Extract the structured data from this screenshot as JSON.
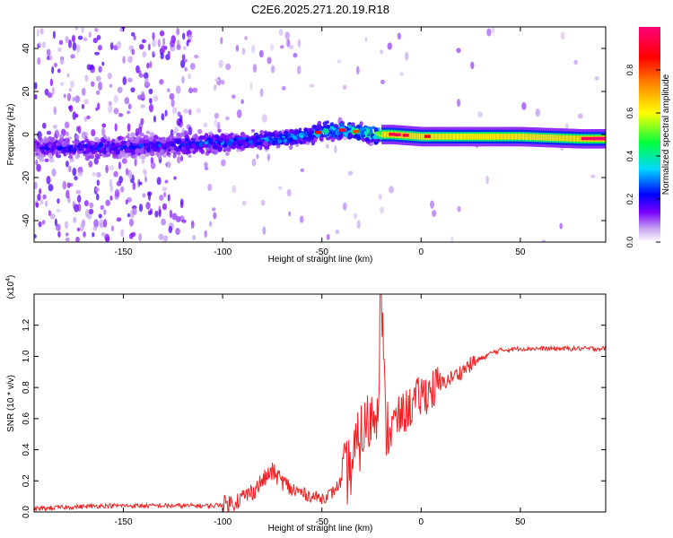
{
  "figure": {
    "title": "C2E6.2025.271.20.19.R18"
  },
  "chart_data": [
    {
      "type": "heatmap",
      "title": "C2E6.2025.271.20.19.R18",
      "xlabel": "Height of straight line (km)",
      "ylabel": "Frequency (Hz)",
      "xlim": [
        -195,
        93
      ],
      "ylim": [
        -50,
        50
      ],
      "xticks": [
        -150,
        -100,
        -50,
        0,
        50
      ],
      "yticks": [
        -40,
        -20,
        0,
        20,
        40
      ],
      "colorbar": {
        "label": "Normalized spectral amplitude",
        "range": [
          0,
          1
        ],
        "ticks": [
          "0.0",
          "0.2",
          "0.4",
          "0.6",
          "0.8"
        ],
        "colors": [
          "#ffffff",
          "#c8a8f0",
          "#7a00ff",
          "#0000ff",
          "#00d8ff",
          "#00ff40",
          "#ffff00",
          "#ff8000",
          "#ff0000",
          "#ff0078"
        ]
      },
      "ridge": {
        "description_points_x": [
          -190,
          -160,
          -130,
          -110,
          -90,
          -70,
          -55,
          -48,
          -40,
          -30,
          -22,
          -15,
          0,
          20,
          50,
          80,
          93
        ],
        "description_points_freq": [
          -6,
          -6,
          -5,
          -4,
          -3,
          -2,
          0,
          2,
          2,
          1,
          0,
          0,
          -1,
          -1,
          -1,
          -2,
          -2
        ],
        "amplitude": [
          0.3,
          0.35,
          0.35,
          0.4,
          0.45,
          0.5,
          0.55,
          0.65,
          0.7,
          0.75,
          0.8,
          0.95,
          0.9,
          0.75,
          0.85,
          0.95,
          1.0
        ]
      }
    },
    {
      "type": "line",
      "xlabel": "Height of straight line (km)",
      "ylabel": "SNR (10 * v/v)",
      "yscale_label": "(x10",
      "yscale_exp": "4",
      "xlim": [
        -195,
        93
      ],
      "ylim": [
        0,
        1.4
      ],
      "xticks": [
        -150,
        -100,
        -50,
        0,
        50
      ],
      "yticks": [
        "0.0",
        "0.2",
        "0.4",
        "0.6",
        "0.8",
        "1.0",
        "1.2"
      ],
      "series": [
        {
          "name": "SNR",
          "color": "#ee2222",
          "x": [
            -195,
            -180,
            -160,
            -140,
            -120,
            -105,
            -95,
            -85,
            -80,
            -75,
            -70,
            -65,
            -60,
            -55,
            -50,
            -45,
            -40,
            -35,
            -30,
            -25,
            -22,
            -20,
            -18,
            -15,
            -10,
            -5,
            0,
            5,
            10,
            15,
            20,
            25,
            30,
            35,
            40,
            50,
            60,
            70,
            80,
            93
          ],
          "y": [
            0.02,
            0.03,
            0.04,
            0.04,
            0.04,
            0.04,
            0.06,
            0.13,
            0.2,
            0.26,
            0.2,
            0.14,
            0.12,
            0.1,
            0.09,
            0.12,
            0.2,
            0.3,
            0.5,
            0.6,
            0.7,
            1.4,
            0.55,
            0.55,
            0.62,
            0.68,
            0.75,
            0.78,
            0.82,
            0.86,
            0.9,
            0.95,
            0.98,
            1.02,
            1.04,
            1.05,
            1.05,
            1.05,
            1.05,
            1.05
          ]
        }
      ]
    }
  ],
  "colors": {
    "line": "#ee2222",
    "axis": "#000000",
    "background": "#ffffff"
  }
}
